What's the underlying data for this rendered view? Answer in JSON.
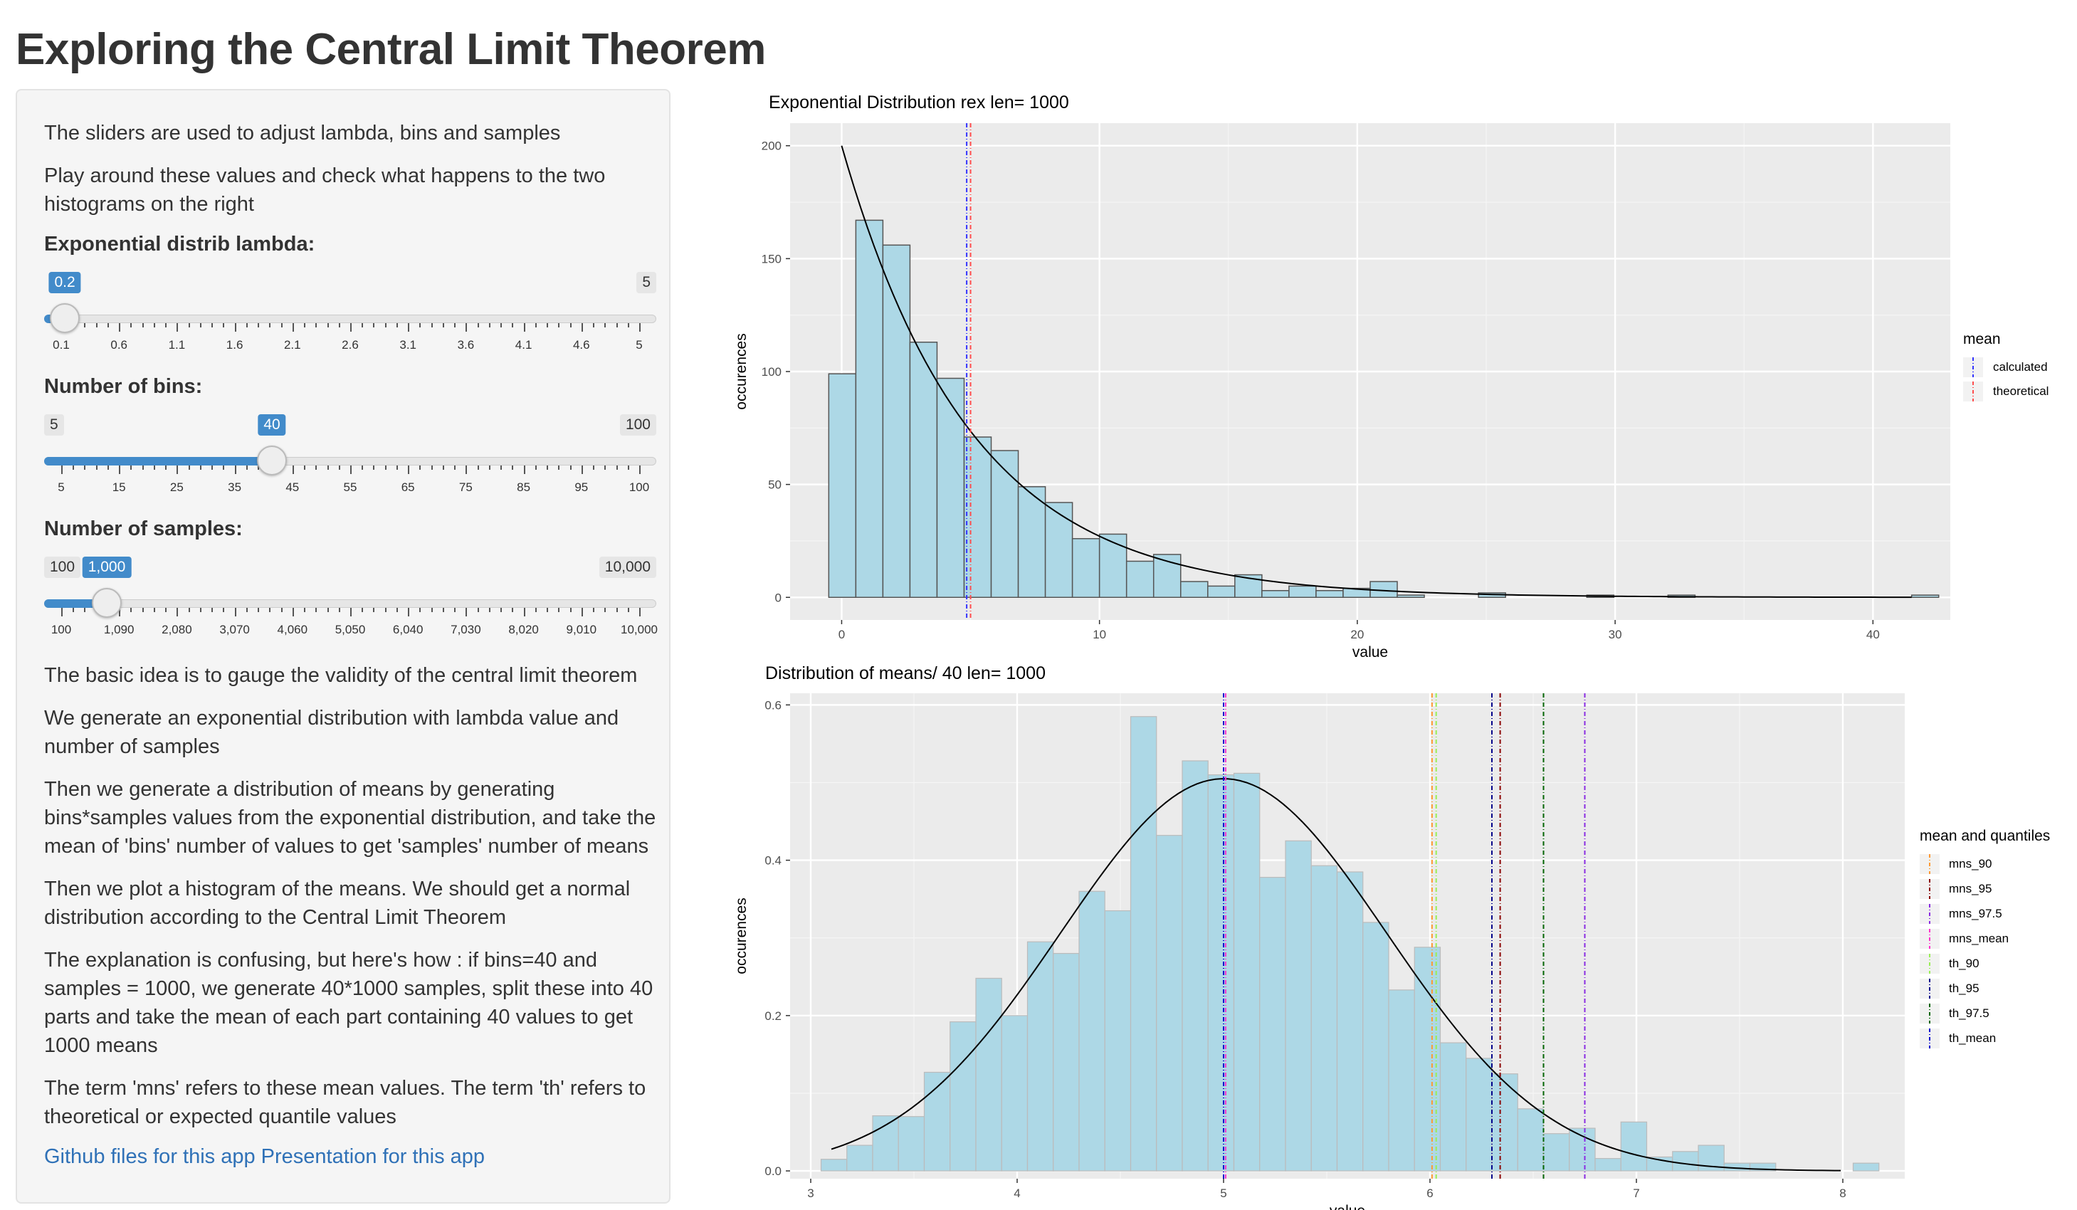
{
  "page": {
    "title": "Exploring the Central Limit Theorem"
  },
  "sidebar": {
    "intro1": "The sliders are used to adjust lambda, bins and samples",
    "intro2": "Play around these values and check what happens to the two histograms on the right",
    "lambda_slider": {
      "label": "Exponential distrib lambda:",
      "min": 0.1,
      "max": 5,
      "value": 0.2,
      "value_label": "0.2",
      "max_label": "5",
      "tick_labels": [
        "0.1",
        "0.6",
        "1.1",
        "1.6",
        "2.1",
        "2.6",
        "3.1",
        "3.6",
        "4.1",
        "4.6",
        "5"
      ]
    },
    "bins_slider": {
      "label": "Number of bins:",
      "min": 5,
      "max": 100,
      "value": 40,
      "value_label": "40",
      "min_label": "5",
      "max_label": "100",
      "tick_labels": [
        "5",
        "15",
        "25",
        "35",
        "45",
        "55",
        "65",
        "75",
        "85",
        "95",
        "100"
      ]
    },
    "samples_slider": {
      "label": "Number of samples:",
      "min": 100,
      "max": 10000,
      "value": 1000,
      "value_label": "1,000",
      "min_label": "100",
      "max_label": "10,000",
      "tick_labels": [
        "100",
        "1,090",
        "2,080",
        "3,070",
        "4,060",
        "5,050",
        "6,040",
        "7,030",
        "8,020",
        "9,010",
        "10,000"
      ]
    },
    "explanation": [
      "The basic idea is to gauge the validity of the central limit theorem",
      "We generate an exponential distribution with lambda value and number of samples",
      "Then we generate a distribution of means by generating bins*samples values from the exponential distribution, and take the mean of 'bins' number of values to get 'samples' number of means",
      "Then we plot a histogram of the means. We should get a normal distribution according to the Central Limit Theorem",
      "The explanation is confusing, but here's how : if bins=40 and samples = 1000, we generate 40*1000 samples, split these into 40 parts and take the mean of each part containing 40 values to get 1000 means",
      "The term 'mns' refers to these mean values. The term 'th' refers to theoretical or expected quantile values"
    ],
    "link_github": "Github files for this app",
    "link_presentation": "Presentation for this app"
  },
  "plot1": {
    "title": "Exponential Distribution rex len= 1000",
    "legend_title": "mean",
    "legend_items": [
      "calculated",
      "theoretical"
    ]
  },
  "plot2": {
    "title": "Distribution of means/ 40 len= 1000",
    "legend_title": "mean and quantiles",
    "legend_items": [
      "mns_90",
      "mns_95",
      "mns_97.5",
      "mns_mean",
      "th_90",
      "th_95",
      "th_97.5",
      "th_mean"
    ]
  },
  "colors": {
    "accent": "#428bca",
    "bar_fill": "#add8e6",
    "panel_bg": "#ebebeb",
    "link": "#2f71b7"
  },
  "chart_data": [
    {
      "type": "bar",
      "title": "Exponential Distribution rex len= 1000",
      "xlabel": "value",
      "ylabel": "occurences",
      "xlim": [
        -2,
        43
      ],
      "ylim": [
        -10,
        210
      ],
      "x_ticks": [
        0,
        10,
        20,
        30,
        40
      ],
      "y_ticks": [
        0,
        50,
        100,
        150,
        200
      ],
      "bin_width": 1.05,
      "bin_start": -0.5,
      "values": [
        99,
        167,
        156,
        113,
        97,
        71,
        65,
        49,
        42,
        26,
        28,
        16,
        19,
        7,
        5,
        10,
        3,
        5,
        3,
        4,
        7,
        1,
        0,
        0,
        2,
        0,
        0,
        0,
        1,
        0,
        0,
        1,
        0,
        0,
        0,
        0,
        0,
        0,
        0,
        0,
        1
      ],
      "curve": {
        "type": "exponential_density",
        "scale": 200,
        "rate": 0.2
      },
      "vlines": [
        {
          "name": "calculated",
          "x": 4.85,
          "color": "#3333ff"
        },
        {
          "name": "theoretical",
          "x": 5.0,
          "color": "#ff4d4d"
        }
      ],
      "legend": "right",
      "grid": true
    },
    {
      "type": "bar",
      "title": "Distribution of means/ 40 len= 1000",
      "xlabel": "value",
      "ylabel": "occurences",
      "xlim": [
        2.9,
        8.3
      ],
      "ylim": [
        -0.01,
        0.615
      ],
      "x_ticks": [
        3,
        4,
        5,
        6,
        7,
        8
      ],
      "y_ticks": [
        0.0,
        0.2,
        0.4,
        0.6
      ],
      "y_tick_labels": [
        "0.0",
        "0.2",
        "0.4",
        "0.6"
      ],
      "bin_start": 3.05,
      "bin_width": 0.125,
      "values": [
        0.015,
        0.033,
        0.071,
        0.07,
        0.127,
        0.192,
        0.248,
        0.2,
        0.295,
        0.28,
        0.36,
        0.335,
        0.585,
        0.432,
        0.528,
        0.51,
        0.512,
        0.378,
        0.425,
        0.393,
        0.385,
        0.32,
        0.233,
        0.288,
        0.165,
        0.145,
        0.125,
        0.08,
        0.048,
        0.055,
        0.016,
        0.063,
        0.018,
        0.025,
        0.033,
        0.01,
        0.01,
        0,
        0,
        0,
        0.01
      ],
      "curve": {
        "type": "normal_density",
        "mean": 5.0,
        "sd": 0.79
      },
      "vlines": [
        {
          "name": "mns_90",
          "x": 6.01,
          "color": "#ff9933"
        },
        {
          "name": "mns_95",
          "x": 6.34,
          "color": "#8b0000"
        },
        {
          "name": "mns_97.5",
          "x": 6.75,
          "color": "#8a2be2"
        },
        {
          "name": "mns_mean",
          "x": 5.01,
          "color": "#ff33cc"
        },
        {
          "name": "th_90",
          "x": 6.03,
          "color": "#99ee55"
        },
        {
          "name": "th_95",
          "x": 6.3,
          "color": "#00008b"
        },
        {
          "name": "th_97.5",
          "x": 6.55,
          "color": "#006400"
        },
        {
          "name": "th_mean",
          "x": 5.0,
          "color": "#0000cd"
        }
      ],
      "legend": "right",
      "grid": true
    }
  ]
}
